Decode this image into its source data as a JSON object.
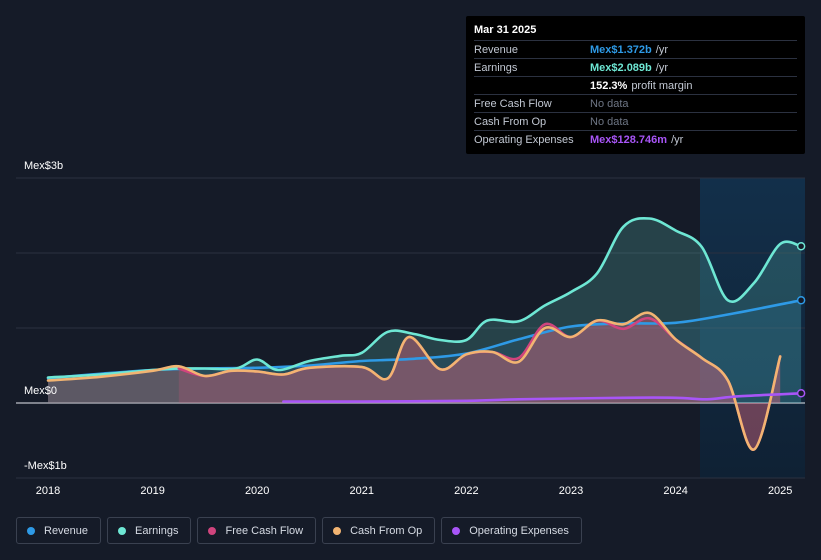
{
  "tooltip": {
    "date": "Mar 31 2025",
    "rows": [
      {
        "label": "Revenue",
        "value": "Mex$1.372b",
        "suffix": "/yr",
        "color": "#2e9ae6"
      },
      {
        "label": "Earnings",
        "value": "Mex$2.089b",
        "suffix": "/yr",
        "color": "#6ee7d4"
      },
      {
        "label": "",
        "value": "152.3%",
        "suffix": "profit margin",
        "color": "#ffffff"
      },
      {
        "label": "Free Cash Flow",
        "value": "No data",
        "suffix": "",
        "color": "#6e7685"
      },
      {
        "label": "Cash From Op",
        "value": "No data",
        "suffix": "",
        "color": "#6e7685"
      },
      {
        "label": "Operating Expenses",
        "value": "Mex$128.746m",
        "suffix": "/yr",
        "color": "#a855f7"
      }
    ]
  },
  "chart_data": {
    "type": "line",
    "y_labels": {
      "top": "Mex$3b",
      "zero": "Mex$0",
      "bottom": "-Mex$1b"
    },
    "x_ticks": [
      "2018",
      "2019",
      "2020",
      "2021",
      "2022",
      "2023",
      "2024",
      "2025"
    ],
    "ylim": [
      -1,
      3
    ],
    "units": "billions MXN",
    "series": [
      {
        "name": "Revenue",
        "color": "#2e9ae6",
        "points": [
          [
            2018.0,
            0.33
          ],
          [
            2018.5,
            0.39
          ],
          [
            2019.0,
            0.44
          ],
          [
            2019.5,
            0.46
          ],
          [
            2020.0,
            0.47
          ],
          [
            2020.5,
            0.5
          ],
          [
            2021.0,
            0.56
          ],
          [
            2021.5,
            0.59
          ],
          [
            2022.0,
            0.66
          ],
          [
            2022.5,
            0.85
          ],
          [
            2023.0,
            1.02
          ],
          [
            2023.5,
            1.06
          ],
          [
            2024.0,
            1.07
          ],
          [
            2024.5,
            1.18
          ],
          [
            2025.2,
            1.37
          ]
        ]
      },
      {
        "name": "Earnings",
        "color": "#6ee7d4",
        "points": [
          [
            2018.0,
            0.34
          ],
          [
            2018.5,
            0.38
          ],
          [
            2019.0,
            0.44
          ],
          [
            2019.25,
            0.46
          ],
          [
            2019.5,
            0.46
          ],
          [
            2019.8,
            0.46
          ],
          [
            2020.0,
            0.58
          ],
          [
            2020.2,
            0.44
          ],
          [
            2020.5,
            0.56
          ],
          [
            2020.8,
            0.63
          ],
          [
            2021.0,
            0.67
          ],
          [
            2021.25,
            0.95
          ],
          [
            2021.5,
            0.92
          ],
          [
            2021.75,
            0.84
          ],
          [
            2022.0,
            0.84
          ],
          [
            2022.2,
            1.1
          ],
          [
            2022.5,
            1.09
          ],
          [
            2022.75,
            1.3
          ],
          [
            2023.0,
            1.48
          ],
          [
            2023.25,
            1.73
          ],
          [
            2023.5,
            2.35
          ],
          [
            2023.75,
            2.46
          ],
          [
            2024.0,
            2.3
          ],
          [
            2024.25,
            2.08
          ],
          [
            2024.5,
            1.37
          ],
          [
            2024.75,
            1.6
          ],
          [
            2025.0,
            2.12
          ],
          [
            2025.2,
            2.09
          ]
        ]
      },
      {
        "name": "Free Cash Flow",
        "color": "#d0447d",
        "points": [
          [
            2019.25,
            0.46
          ],
          [
            2019.5,
            0.36
          ],
          [
            2019.75,
            0.43
          ],
          [
            2020.0,
            0.42
          ],
          [
            2020.25,
            0.38
          ],
          [
            2020.5,
            0.47
          ],
          [
            2021.0,
            0.48
          ],
          [
            2021.25,
            0.33
          ],
          [
            2021.45,
            0.88
          ],
          [
            2021.75,
            0.45
          ],
          [
            2022.0,
            0.65
          ],
          [
            2022.25,
            0.68
          ],
          [
            2022.5,
            0.6
          ],
          [
            2022.75,
            1.05
          ],
          [
            2023.0,
            0.88
          ],
          [
            2023.25,
            1.1
          ],
          [
            2023.5,
            0.99
          ],
          [
            2023.75,
            1.13
          ],
          [
            2024.0,
            0.85
          ],
          [
            2024.25,
            0.6
          ],
          [
            2024.5,
            0.3
          ],
          [
            2024.75,
            -0.62
          ],
          [
            2025.0,
            0.62
          ]
        ]
      },
      {
        "name": "Cash From Op",
        "color": "#f2b472",
        "points": [
          [
            2018.0,
            0.3
          ],
          [
            2018.5,
            0.35
          ],
          [
            2019.0,
            0.43
          ],
          [
            2019.25,
            0.49
          ],
          [
            2019.5,
            0.36
          ],
          [
            2019.75,
            0.43
          ],
          [
            2020.0,
            0.42
          ],
          [
            2020.25,
            0.38
          ],
          [
            2020.5,
            0.47
          ],
          [
            2021.0,
            0.48
          ],
          [
            2021.25,
            0.33
          ],
          [
            2021.45,
            0.88
          ],
          [
            2021.75,
            0.45
          ],
          [
            2022.0,
            0.65
          ],
          [
            2022.25,
            0.68
          ],
          [
            2022.5,
            0.55
          ],
          [
            2022.75,
            1.0
          ],
          [
            2023.0,
            0.88
          ],
          [
            2023.25,
            1.1
          ],
          [
            2023.5,
            1.05
          ],
          [
            2023.75,
            1.2
          ],
          [
            2024.0,
            0.85
          ],
          [
            2024.25,
            0.6
          ],
          [
            2024.5,
            0.3
          ],
          [
            2024.75,
            -0.62
          ],
          [
            2025.0,
            0.62
          ]
        ]
      },
      {
        "name": "Operating Expenses",
        "color": "#a855f7",
        "points": [
          [
            2020.25,
            0.02
          ],
          [
            2021.0,
            0.02
          ],
          [
            2022.0,
            0.03
          ],
          [
            2022.5,
            0.05
          ],
          [
            2023.0,
            0.06
          ],
          [
            2023.5,
            0.07
          ],
          [
            2024.0,
            0.07
          ],
          [
            2024.3,
            0.05
          ],
          [
            2024.6,
            0.09
          ],
          [
            2025.2,
            0.13
          ]
        ]
      }
    ]
  },
  "legend": [
    "Revenue",
    "Earnings",
    "Free Cash Flow",
    "Cash From Op",
    "Operating Expenses"
  ],
  "colors": {
    "background": "#151b28",
    "forecast_band": "#0f2a3f"
  }
}
